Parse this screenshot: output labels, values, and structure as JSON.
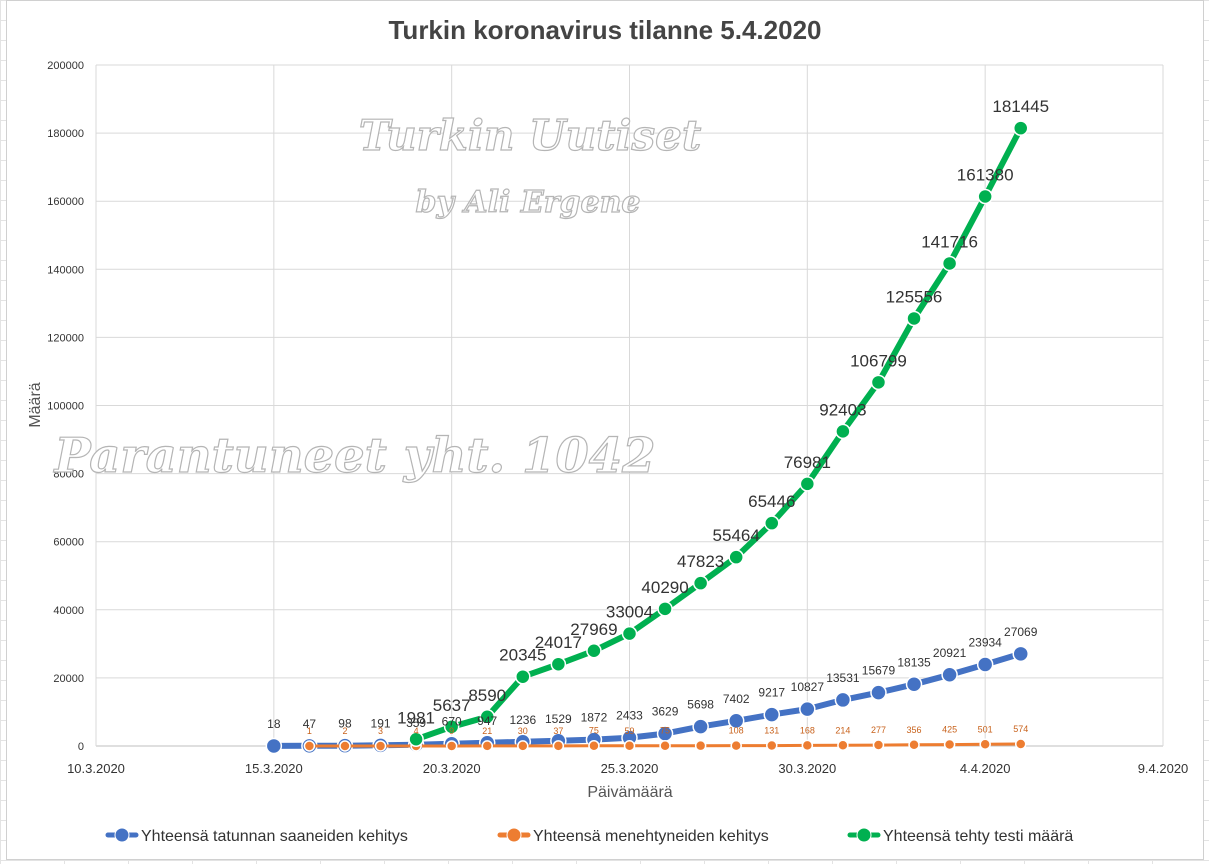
{
  "chart_data": {
    "type": "line",
    "title": "Turkin koronavirus tilanne 5.4.2020",
    "xlabel": "Päivämäärä",
    "ylabel": "Määrä",
    "xlim": [
      "10.3.2020",
      "9.4.2020"
    ],
    "x_ticks": [
      "10.3.2020",
      "15.3.2020",
      "20.3.2020",
      "25.3.2020",
      "30.3.2020",
      "4.4.2020",
      "9.4.2020"
    ],
    "ylim": [
      0,
      200000
    ],
    "y_ticks": [
      0,
      20000,
      40000,
      60000,
      80000,
      100000,
      120000,
      140000,
      160000,
      180000,
      200000
    ],
    "grid": true,
    "legend_position": "bottom",
    "series": [
      {
        "name": "Yhteensä tatunnan saaneiden kehitys",
        "color": "#4472c4",
        "x": [
          "15.3.2020",
          "16.3.2020",
          "17.3.2020",
          "18.3.2020",
          "19.3.2020",
          "20.3.2020",
          "21.3.2020",
          "22.3.2020",
          "23.3.2020",
          "24.3.2020",
          "25.3.2020",
          "26.3.2020",
          "27.3.2020",
          "28.3.2020",
          "29.3.2020",
          "30.3.2020",
          "31.3.2020",
          "1.4.2020",
          "2.4.2020",
          "3.4.2020",
          "4.4.2020",
          "5.4.2020"
        ],
        "values": [
          18,
          47,
          98,
          191,
          359,
          670,
          947,
          1236,
          1529,
          1872,
          2433,
          3629,
          5698,
          7402,
          9217,
          10827,
          13531,
          15679,
          18135,
          20921,
          23934,
          27069
        ]
      },
      {
        "name": "Yhteensä menehtyneiden kehitys",
        "color": "#ed7d31",
        "x": [
          "16.3.2020",
          "17.3.2020",
          "18.3.2020",
          "19.3.2020",
          "20.3.2020",
          "21.3.2020",
          "22.3.2020",
          "23.3.2020",
          "24.3.2020",
          "25.3.2020",
          "26.3.2020",
          "27.3.2020",
          "28.3.2020",
          "29.3.2020",
          "30.3.2020",
          "31.3.2020",
          "1.4.2020",
          "2.4.2020",
          "3.4.2020",
          "4.4.2020",
          "5.4.2020"
        ],
        "values": [
          1,
          2,
          3,
          4,
          9,
          21,
          30,
          37,
          75,
          59,
          75,
          92,
          108,
          131,
          168,
          214,
          277,
          356,
          425,
          501,
          574
        ],
        "labels": [
          "1",
          "2",
          "3",
          "4",
          "9",
          "21",
          "30",
          "37",
          "75",
          "59",
          "75",
          "",
          "108",
          "131",
          "168",
          "214",
          "277",
          "356",
          "425",
          "501",
          "574"
        ]
      },
      {
        "name": "Yhteensä tehty testi määrä",
        "color": "#00b050",
        "x": [
          "19.3.2020",
          "20.3.2020",
          "21.3.2020",
          "22.3.2020",
          "23.3.2020",
          "24.3.2020",
          "25.3.2020",
          "26.3.2020",
          "27.3.2020",
          "28.3.2020",
          "29.3.2020",
          "30.3.2020",
          "31.3.2020",
          "1.4.2020",
          "2.4.2020",
          "3.4.2020",
          "4.4.2020",
          "5.4.2020"
        ],
        "values": [
          1981,
          5637,
          8590,
          20345,
          24017,
          27969,
          33004,
          40290,
          47823,
          55464,
          65446,
          76981,
          92403,
          106799,
          125556,
          141716,
          161380,
          181445
        ]
      }
    ],
    "watermarks": [
      "Turkin Uutiset",
      "by Ali Ergene",
      "Parantuneet yht. 1042"
    ]
  }
}
